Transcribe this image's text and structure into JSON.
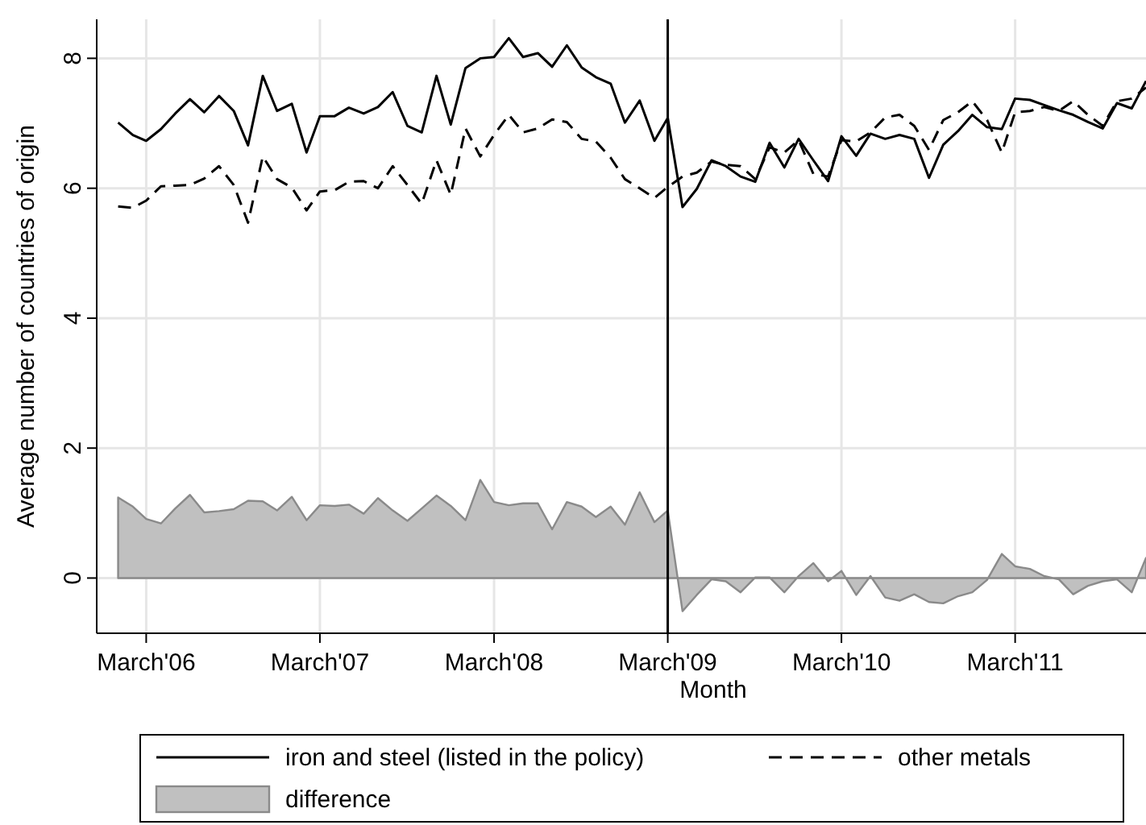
{
  "chart_data": {
    "type": "line",
    "xlabel": "Month",
    "ylabel": "Average number of countries of origin",
    "x": [
      "2006-01",
      "2006-02",
      "2006-03",
      "2006-04",
      "2006-05",
      "2006-06",
      "2006-07",
      "2006-08",
      "2006-09",
      "2006-10",
      "2006-11",
      "2006-12",
      "2007-01",
      "2007-02",
      "2007-03",
      "2007-04",
      "2007-05",
      "2007-06",
      "2007-07",
      "2007-08",
      "2007-09",
      "2007-10",
      "2007-11",
      "2007-12",
      "2008-01",
      "2008-02",
      "2008-03",
      "2008-04",
      "2008-05",
      "2008-06",
      "2008-07",
      "2008-08",
      "2008-09",
      "2008-10",
      "2008-11",
      "2008-12",
      "2009-01",
      "2009-02",
      "2009-03",
      "2009-04",
      "2009-05",
      "2009-06",
      "2009-07",
      "2009-08",
      "2009-09",
      "2009-10",
      "2009-11",
      "2009-12",
      "2010-01",
      "2010-02",
      "2010-03",
      "2010-04",
      "2010-05",
      "2010-06",
      "2010-07",
      "2010-08",
      "2010-09",
      "2010-10",
      "2010-11",
      "2010-12",
      "2011-01",
      "2011-02",
      "2011-03",
      "2011-04",
      "2011-05",
      "2011-06",
      "2011-07",
      "2011-08",
      "2011-09",
      "2011-10",
      "2011-11",
      "2011-12"
    ],
    "series": [
      {
        "name": "iron and steel (listed in the policy)",
        "type": "line",
        "line_style": "solid",
        "color": "#000000",
        "values": [
          7.01,
          6.82,
          6.73,
          6.91,
          7.15,
          7.37,
          7.17,
          7.42,
          7.19,
          6.66,
          7.73,
          7.19,
          7.3,
          6.55,
          7.11,
          7.11,
          7.24,
          7.15,
          7.25,
          7.48,
          6.96,
          6.86,
          7.73,
          6.98,
          7.85,
          8.0,
          8.02,
          8.31,
          8.02,
          8.08,
          7.87,
          8.2,
          7.86,
          7.71,
          7.61,
          7.01,
          7.35,
          6.73,
          7.08,
          5.71,
          5.99,
          6.43,
          6.34,
          6.18,
          6.1,
          6.7,
          6.32,
          6.76,
          6.43,
          6.11,
          6.8,
          6.5,
          6.84,
          6.76,
          6.82,
          6.76,
          6.16,
          6.67,
          6.88,
          7.13,
          6.94,
          6.91,
          7.38,
          7.36,
          7.28,
          7.2,
          7.13,
          7.02,
          6.92,
          7.31,
          7.23,
          7.65
        ]
      },
      {
        "name": "other metals",
        "type": "line",
        "line_style": "dashed",
        "color": "#000000",
        "values": [
          5.72,
          5.7,
          5.81,
          6.03,
          6.04,
          6.05,
          6.15,
          6.34,
          6.05,
          5.47,
          6.49,
          6.14,
          6.01,
          5.66,
          5.95,
          5.97,
          6.1,
          6.11,
          6.0,
          6.34,
          6.05,
          5.76,
          6.43,
          5.9,
          6.92,
          6.49,
          6.82,
          7.13,
          6.86,
          6.92,
          7.06,
          7.02,
          6.76,
          6.72,
          6.47,
          6.14,
          6.0,
          5.85,
          6.02,
          6.18,
          6.24,
          6.41,
          6.36,
          6.34,
          6.14,
          6.63,
          6.55,
          6.74,
          6.22,
          6.18,
          6.74,
          6.72,
          6.86,
          7.09,
          7.13,
          6.96,
          6.59,
          7.05,
          7.17,
          7.34,
          7.05,
          6.55,
          7.17,
          7.19,
          7.25,
          7.19,
          7.34,
          7.13,
          6.96,
          7.34,
          7.38,
          7.55
        ]
      },
      {
        "name": "difference",
        "type": "area",
        "color": "#c0c0c0",
        "values": [
          1.24,
          1.1,
          0.91,
          0.84,
          1.07,
          1.28,
          1.01,
          1.03,
          1.06,
          1.19,
          1.18,
          1.04,
          1.25,
          0.89,
          1.12,
          1.11,
          1.13,
          0.99,
          1.23,
          1.04,
          0.88,
          1.07,
          1.27,
          1.11,
          0.89,
          1.51,
          1.17,
          1.12,
          1.15,
          1.15,
          0.75,
          1.17,
          1.1,
          0.94,
          1.1,
          0.82,
          1.32,
          0.86,
          1.04,
          -0.51,
          -0.26,
          -0.02,
          -0.05,
          -0.22,
          0.01,
          0.01,
          -0.22,
          0.03,
          0.23,
          -0.05,
          0.11,
          -0.26,
          0.03,
          -0.3,
          -0.35,
          -0.25,
          -0.37,
          -0.39,
          -0.28,
          -0.22,
          -0.03,
          0.37,
          0.18,
          0.14,
          0.03,
          -0.02,
          -0.25,
          -0.12,
          -0.05,
          -0.02,
          -0.22,
          0.31
        ]
      }
    ],
    "xlim": [
      "2005-11-17",
      "2011-12"
    ],
    "xticks": [
      {
        "value": "2006-03",
        "label": "March'06"
      },
      {
        "value": "2007-03",
        "label": "March'07"
      },
      {
        "value": "2008-03",
        "label": "March'08"
      },
      {
        "value": "2009-03",
        "label": "March'09"
      },
      {
        "value": "2010-03",
        "label": "March'10"
      },
      {
        "value": "2011-03",
        "label": "March'11"
      }
    ],
    "ylim": [
      -0.85,
      8.6
    ],
    "yticks": [
      0,
      2,
      4,
      6,
      8
    ],
    "ref_lines": [
      {
        "axis": "x",
        "value": "2009-03",
        "color": "#000000"
      }
    ],
    "grid": true,
    "legend": "bottom"
  }
}
